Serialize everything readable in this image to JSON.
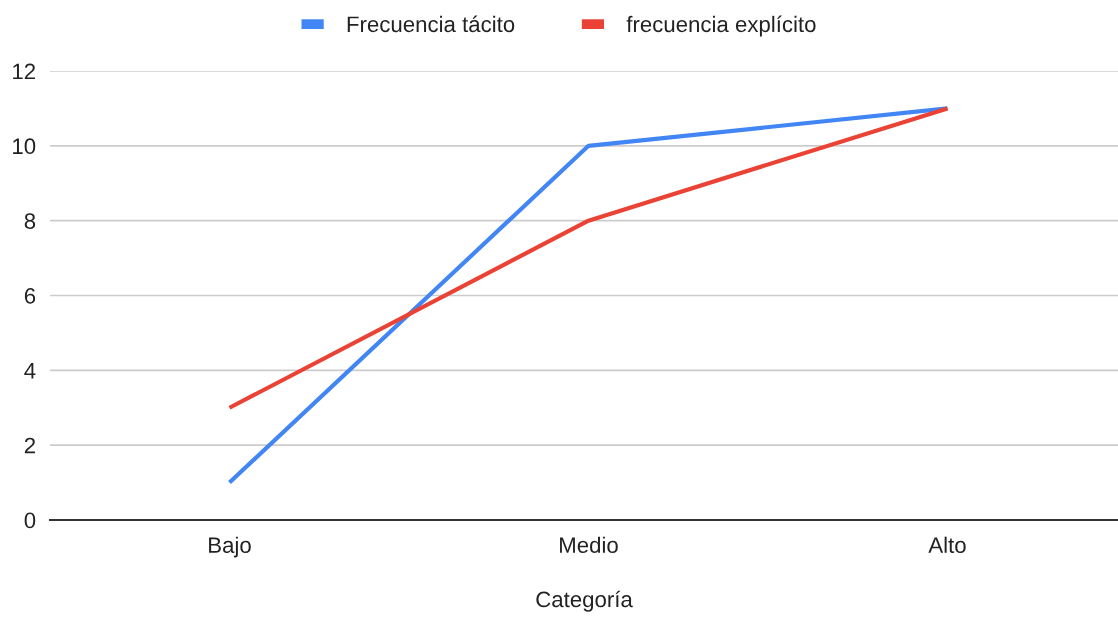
{
  "chart_data": {
    "type": "line",
    "xlabel": "Categoría",
    "categories": [
      "Bajo",
      "Medio",
      "Alto"
    ],
    "series": [
      {
        "name": "Frecuencia tácito",
        "color": "#4285f4",
        "values": [
          1,
          10,
          11
        ]
      },
      {
        "name": "frecuencia explícito",
        "color": "#ea4335",
        "values": [
          3,
          8,
          11
        ]
      }
    ],
    "ylim": [
      0,
      12
    ],
    "yticks": [
      0,
      2,
      4,
      6,
      8,
      10,
      12
    ],
    "grid": "y",
    "legend": "top",
    "marker": "none",
    "line_style": "solid"
  }
}
